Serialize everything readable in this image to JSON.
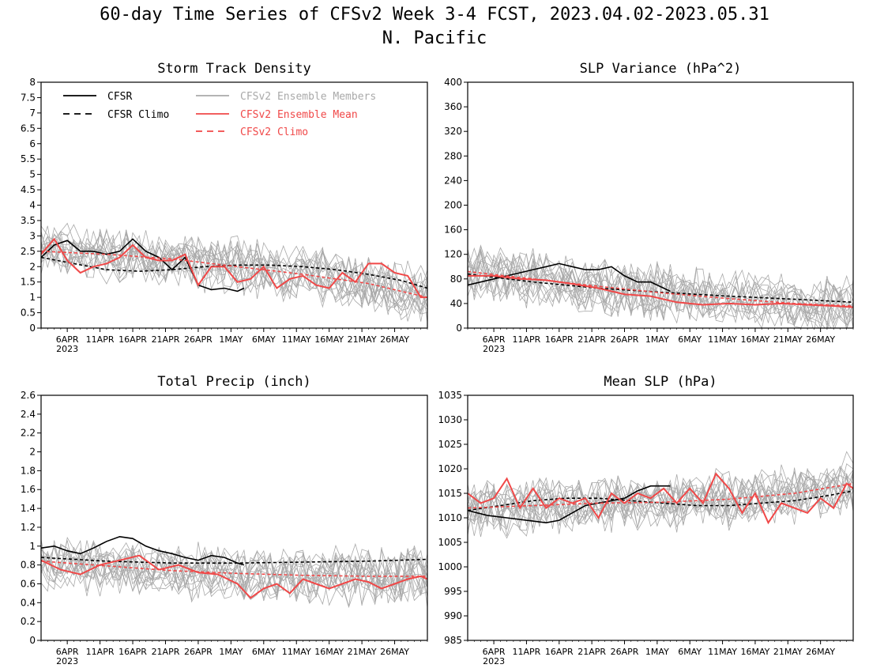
{
  "figure": {
    "title_line1": "60-day Time Series of CFSv2 Week 3-4 FCST, 2023.04.02-2023.05.31",
    "title_line2": "N. Pacific"
  },
  "colors": {
    "cfsr": "#000000",
    "members": "#a9a9a9",
    "ens_mean": "#f04848",
    "cfsv2_climo": "#f04848"
  },
  "legend": {
    "cfsr": "CFSR",
    "cfsr_climo": "CFSR Climo",
    "members": "CFSv2 Ensemble Members",
    "ens_mean": "CFSv2 Ensemble Mean",
    "cfsv2_climo": "CFSv2 Climo"
  },
  "x_axis": {
    "tick_labels": [
      "6APR",
      "11APR",
      "16APR",
      "21APR",
      "26APR",
      "1MAY",
      "6MAY",
      "11MAY",
      "16MAY",
      "21MAY",
      "26MAY"
    ],
    "tick_days": [
      4,
      9,
      14,
      19,
      24,
      29,
      34,
      39,
      44,
      49,
      54
    ],
    "year_label": "2023",
    "range_days": [
      0,
      59
    ]
  },
  "chart_data": [
    {
      "type": "line",
      "title": "Storm Track Density",
      "ylim": [
        0,
        8
      ],
      "yticks": [
        "0",
        "0.5",
        "1",
        "1.5",
        "2",
        "2.5",
        "3",
        "3.5",
        "4",
        "4.5",
        "5",
        "5.5",
        "6",
        "6.5",
        "7",
        "7.5",
        "8"
      ],
      "legend_placement": "top",
      "series": [
        {
          "name": "CFSR",
          "x": [
            0,
            2,
            4,
            6,
            8,
            10,
            12,
            14,
            16,
            18,
            20,
            22,
            24,
            26,
            28,
            30,
            31
          ],
          "values": [
            2.3,
            2.7,
            2.85,
            2.5,
            2.5,
            2.4,
            2.5,
            2.9,
            2.5,
            2.3,
            1.9,
            2.3,
            1.4,
            1.25,
            1.3,
            1.2,
            1.3
          ]
        },
        {
          "name": "CFSR Climo",
          "x": [
            0,
            5,
            10,
            15,
            20,
            25,
            30,
            35,
            40,
            45,
            50,
            55,
            59
          ],
          "values": [
            2.3,
            2.1,
            1.9,
            1.85,
            1.9,
            2.0,
            2.05,
            2.05,
            2.0,
            1.9,
            1.75,
            1.55,
            1.3
          ]
        },
        {
          "name": "CFSv2 Ensemble Mean",
          "x": [
            0,
            2,
            4,
            6,
            8,
            10,
            12,
            14,
            16,
            18,
            20,
            22,
            24,
            26,
            28,
            30,
            32,
            34,
            36,
            38,
            40,
            42,
            44,
            46,
            48,
            50,
            52,
            54,
            56,
            58,
            59
          ],
          "values": [
            2.4,
            2.9,
            2.2,
            1.8,
            2.0,
            2.1,
            2.3,
            2.7,
            2.3,
            2.2,
            2.2,
            2.4,
            1.4,
            2.0,
            2.0,
            1.5,
            1.6,
            2.0,
            1.3,
            1.6,
            1.7,
            1.4,
            1.3,
            1.8,
            1.5,
            2.1,
            2.1,
            1.8,
            1.7,
            1.0,
            1.0
          ]
        },
        {
          "name": "CFSv2 Climo",
          "x": [
            0,
            10,
            20,
            30,
            40,
            50,
            55,
            59
          ],
          "values": [
            2.5,
            2.4,
            2.25,
            2.0,
            1.75,
            1.45,
            1.2,
            1.0
          ]
        }
      ]
    },
    {
      "type": "line",
      "title": "SLP Variance (hPa^2)",
      "ylim": [
        0,
        400
      ],
      "yticks": [
        "0",
        "40",
        "80",
        "120",
        "160",
        "200",
        "240",
        "280",
        "320",
        "360",
        "400"
      ],
      "series": [
        {
          "name": "CFSR",
          "x": [
            0,
            2,
            4,
            6,
            8,
            10,
            12,
            14,
            16,
            18,
            20,
            22,
            24,
            26,
            28,
            30,
            31
          ],
          "values": [
            70,
            75,
            80,
            85,
            90,
            95,
            100,
            105,
            100,
            95,
            95,
            100,
            85,
            75,
            75,
            65,
            60
          ]
        },
        {
          "name": "CFSR Climo",
          "x": [
            0,
            10,
            20,
            30,
            40,
            50,
            59
          ],
          "values": [
            88,
            75,
            65,
            58,
            52,
            47,
            42
          ]
        },
        {
          "name": "CFSv2 Ensemble Mean",
          "x": [
            0,
            4,
            8,
            12,
            16,
            20,
            24,
            28,
            32,
            36,
            40,
            44,
            48,
            52,
            56,
            59
          ],
          "values": [
            85,
            85,
            80,
            78,
            72,
            65,
            55,
            52,
            42,
            38,
            40,
            38,
            40,
            38,
            36,
            34
          ]
        },
        {
          "name": "CFSv2 Climo",
          "x": [
            0,
            10,
            20,
            30,
            40,
            50,
            59
          ],
          "values": [
            92,
            80,
            68,
            57,
            48,
            40,
            36
          ]
        }
      ]
    },
    {
      "type": "line",
      "title": "Total Precip (inch)",
      "ylim": [
        0,
        2.6
      ],
      "yticks": [
        "0",
        "0.2",
        "0.4",
        "0.6",
        "0.8",
        "1",
        "1.2",
        "1.4",
        "1.6",
        "1.8",
        "2",
        "2.2",
        "2.4",
        "2.6"
      ],
      "series": [
        {
          "name": "CFSR",
          "x": [
            0,
            2,
            4,
            6,
            8,
            10,
            12,
            14,
            16,
            18,
            20,
            22,
            24,
            26,
            28,
            30,
            31
          ],
          "values": [
            0.98,
            1.0,
            0.95,
            0.92,
            0.98,
            1.05,
            1.1,
            1.08,
            1.0,
            0.95,
            0.92,
            0.88,
            0.85,
            0.9,
            0.88,
            0.82,
            0.8
          ]
        },
        {
          "name": "CFSR Climo",
          "x": [
            0,
            10,
            20,
            30,
            40,
            50,
            59
          ],
          "values": [
            0.88,
            0.84,
            0.82,
            0.82,
            0.83,
            0.84,
            0.86
          ]
        },
        {
          "name": "CFSv2 Ensemble Mean",
          "x": [
            0,
            3,
            6,
            9,
            12,
            15,
            18,
            21,
            24,
            27,
            30,
            32,
            34,
            36,
            38,
            40,
            42,
            44,
            46,
            48,
            50,
            52,
            54,
            56,
            58,
            59
          ],
          "values": [
            0.85,
            0.75,
            0.7,
            0.8,
            0.85,
            0.9,
            0.75,
            0.8,
            0.72,
            0.7,
            0.6,
            0.45,
            0.55,
            0.6,
            0.5,
            0.65,
            0.6,
            0.55,
            0.6,
            0.65,
            0.62,
            0.55,
            0.6,
            0.65,
            0.68,
            0.65
          ]
        },
        {
          "name": "CFSv2 Climo",
          "x": [
            0,
            10,
            20,
            30,
            40,
            50,
            59
          ],
          "values": [
            0.84,
            0.79,
            0.74,
            0.71,
            0.69,
            0.68,
            0.68
          ]
        }
      ]
    },
    {
      "type": "line",
      "title": "Mean SLP (hPa)",
      "ylim": [
        985,
        1035
      ],
      "yticks": [
        "985",
        "990",
        "995",
        "1000",
        "1005",
        "1010",
        "1015",
        "1020",
        "1025",
        "1030",
        "1035"
      ],
      "series": [
        {
          "name": "CFSR",
          "x": [
            0,
            3,
            6,
            9,
            12,
            14,
            16,
            18,
            20,
            22,
            24,
            26,
            28,
            30,
            31
          ],
          "values": [
            1011.5,
            1010.5,
            1010,
            1009.5,
            1009,
            1009.5,
            1011,
            1012.5,
            1013,
            1013.5,
            1014,
            1015.5,
            1016.5,
            1016.5,
            1016.5
          ]
        },
        {
          "name": "CFSR Climo",
          "x": [
            0,
            5,
            10,
            15,
            20,
            25,
            30,
            35,
            40,
            45,
            50,
            55,
            59
          ],
          "values": [
            1011.5,
            1012.5,
            1013.5,
            1014,
            1014,
            1013.5,
            1013,
            1012.5,
            1012.5,
            1013,
            1013.5,
            1014.5,
            1015.5
          ]
        },
        {
          "name": "CFSv2 Ensemble Mean",
          "x": [
            0,
            2,
            4,
            6,
            8,
            10,
            12,
            14,
            16,
            18,
            20,
            22,
            24,
            26,
            28,
            30,
            32,
            34,
            36,
            38,
            40,
            42,
            44,
            46,
            48,
            50,
            52,
            54,
            56,
            58,
            59
          ],
          "values": [
            1015,
            1013,
            1014,
            1018,
            1012,
            1016,
            1012,
            1014,
            1013,
            1014,
            1010,
            1015,
            1013,
            1015,
            1014,
            1016,
            1013,
            1016,
            1013,
            1019,
            1016,
            1011,
            1015,
            1009,
            1013,
            1012,
            1011,
            1014,
            1012,
            1017,
            1016
          ]
        },
        {
          "name": "CFSv2 Climo",
          "x": [
            0,
            10,
            20,
            30,
            40,
            50,
            59
          ],
          "values": [
            1012,
            1012.5,
            1013,
            1013.2,
            1013.8,
            1015,
            1017
          ]
        }
      ]
    }
  ]
}
